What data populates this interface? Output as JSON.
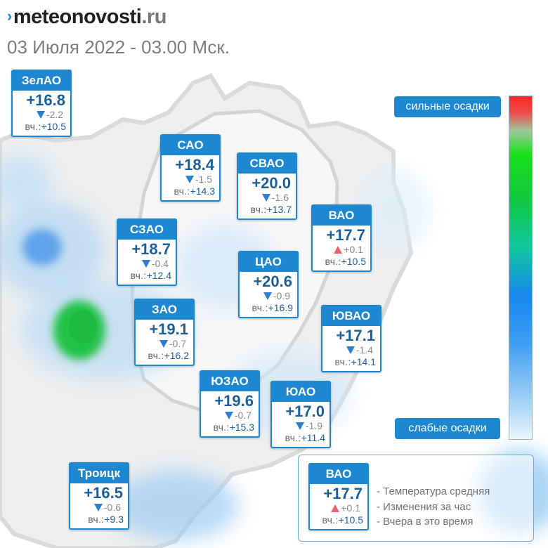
{
  "logo": {
    "mark": "›",
    "brand_bold": "meteonovosti",
    "tld": ".ru"
  },
  "date_text": "03 Июля 2022 - 03.00 Мск.",
  "districts": [
    {
      "name": "ЗелАО",
      "temp": "+16.8",
      "change": "-2.2",
      "trend": "down",
      "yesterday_label": "вч.:",
      "yesterday": "+10.5"
    },
    {
      "name": "САО",
      "temp": "+18.4",
      "change": "-1.5",
      "trend": "down",
      "yesterday_label": "вч.:",
      "yesterday": "+14.3"
    },
    {
      "name": "СВАО",
      "temp": "+20.0",
      "change": "-1.6",
      "trend": "down",
      "yesterday_label": "вч.:",
      "yesterday": "+13.7"
    },
    {
      "name": "ВАО",
      "temp": "+17.7",
      "change": "+0.1",
      "trend": "up",
      "yesterday_label": "вч.:",
      "yesterday": "+10.5"
    },
    {
      "name": "СЗАО",
      "temp": "+18.7",
      "change": "-0.4",
      "trend": "down",
      "yesterday_label": "вч.:",
      "yesterday": "+12.4"
    },
    {
      "name": "ЦАО",
      "temp": "+20.6",
      "change": "-0.9",
      "trend": "down",
      "yesterday_label": "вч.:",
      "yesterday": "+16.9"
    },
    {
      "name": "ЗАО",
      "temp": "+19.1",
      "change": "-0.7",
      "trend": "down",
      "yesterday_label": "вч.:",
      "yesterday": "+16.2"
    },
    {
      "name": "ЮВАО",
      "temp": "+17.1",
      "change": "-1.4",
      "trend": "down",
      "yesterday_label": "вч.:",
      "yesterday": "+14.1"
    },
    {
      "name": "ЮЗАО",
      "temp": "+19.6",
      "change": "-0.7",
      "trend": "down",
      "yesterday_label": "вч.:",
      "yesterday": "+15.3"
    },
    {
      "name": "ЮАО",
      "temp": "+17.0",
      "change": "-1.9",
      "trend": "down",
      "yesterday_label": "вч.:",
      "yesterday": "+11.4"
    },
    {
      "name": "Троицк",
      "temp": "+16.5",
      "change": "-0.6",
      "trend": "down",
      "yesterday_label": "вч.:",
      "yesterday": "+9.3"
    }
  ],
  "legend": {
    "strong_label": "сильные осадки",
    "weak_label": "слабые осадки",
    "colors": [
      "#ff2626",
      "#19e019",
      "#1888ee",
      "#eaf6fd"
    ]
  },
  "key": {
    "sample": {
      "name": "ВАО",
      "temp": "+17.7",
      "change": "+0.1",
      "trend": "up",
      "yesterday_label": "вч.:",
      "yesterday": "+10.5"
    },
    "lines": [
      "- Температура средняя",
      "- Изменения за час",
      "- Вчера в это время"
    ]
  },
  "colors": {
    "accent": "#1d87d2",
    "temp_text": "#1d5f99",
    "down_arrow": "#2e7fd4",
    "up_arrow": "#e8646a"
  }
}
